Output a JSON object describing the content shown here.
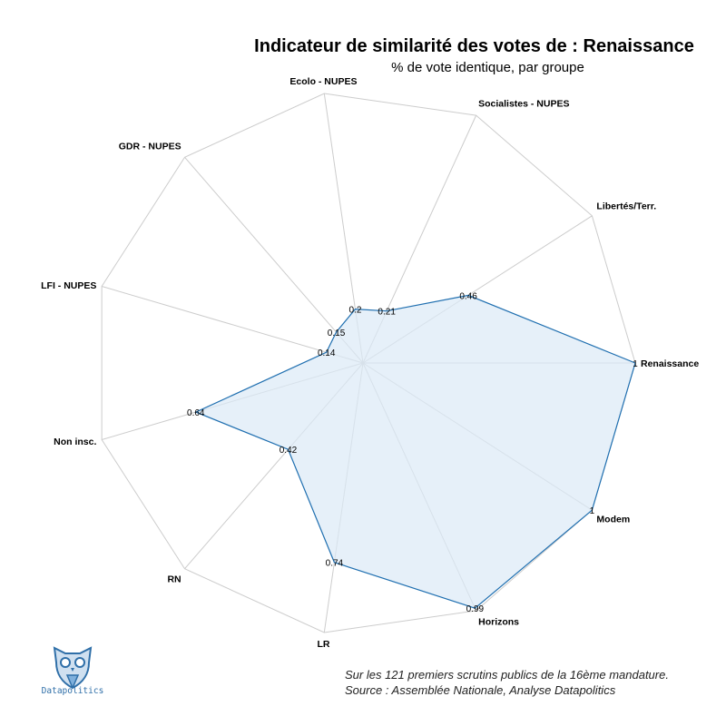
{
  "header": {
    "title": "Indicateur de similarité des votes de : Renaissance",
    "subtitle": "% de vote identique, par groupe"
  },
  "chart_data": {
    "type": "radar",
    "title": "Indicateur de similarité des votes de : Renaissance",
    "subtitle": "% de vote identique, par groupe",
    "rmax": 1,
    "categories": [
      "Renaissance",
      "Libertés/Terr.",
      "Socialistes - NUPES",
      "Ecolo - NUPES",
      "GDR - NUPES",
      "LFI - NUPES",
      "Non insc.",
      "RN",
      "LR",
      "Horizons",
      "Modem"
    ],
    "values": [
      1,
      0.46,
      0.21,
      0.2,
      0.15,
      0.14,
      0.64,
      0.42,
      0.74,
      0.99,
      1
    ],
    "value_labels": [
      "1",
      "0.46",
      "0.21",
      "0.2",
      "0.15",
      "0.14",
      "0.64",
      "0.42",
      "0.74",
      "0.99",
      "1"
    ],
    "colors": {
      "line": "#1f6fb0",
      "fill": "#dce9f6",
      "grid": "#cccccc"
    }
  },
  "footer": {
    "line1": "Sur les 121 premiers scrutins publics de la 16ème mandature.",
    "line2": "Source : Assemblée Nationale, Analyse Datapolitics"
  },
  "logo": {
    "name": "Datapolitics",
    "icon": "owl-logo-icon"
  }
}
